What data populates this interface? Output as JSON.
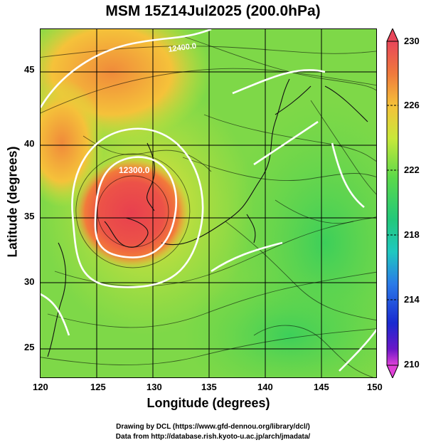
{
  "title": "MSM 15Z14Jul2025 (200.0hPa)",
  "axes": {
    "xlabel": "Longitude (degrees)",
    "ylabel": "Latitude  (degrees)",
    "x_ticks": [
      "120",
      "125",
      "130",
      "135",
      "140",
      "145",
      "150"
    ],
    "y_ticks": [
      "45",
      "40",
      "35",
      "30",
      "25"
    ]
  },
  "colorbar": {
    "labels": [
      "230",
      "226",
      "222",
      "218",
      "214",
      "210"
    ],
    "colors": [
      "#e8465a",
      "#f07a3c",
      "#f5c23a",
      "#c8e83a",
      "#5cd94a",
      "#22c87a",
      "#20c8c0",
      "#2a7ae8",
      "#1a2ad0",
      "#6a16c8",
      "#e040d8"
    ]
  },
  "contour_labels": [
    "12300.0",
    "12400.0"
  ],
  "credits": {
    "line1": "Drawing by DCL (https://www.gfd-dennou.org/library/dcl/)",
    "line2": "Data from http://database.rish.kyoto-u.ac.jp/arch/jmadata/"
  },
  "chart_data": {
    "type": "heatmap",
    "field": "200.0hPa",
    "x_range": [
      120,
      150
    ],
    "y_range": [
      22.6,
      47.9
    ],
    "colorbar_range": [
      210,
      230
    ],
    "features": [
      "temperature shading",
      "streamlines",
      "geopotential height contours (white)",
      "coastlines"
    ]
  }
}
